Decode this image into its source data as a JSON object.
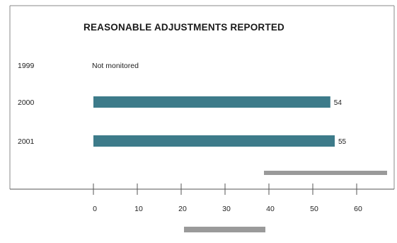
{
  "colors": {
    "bar": "#3d7b8a",
    "frame": "#8a8a8a",
    "decor_bar": "#9a9a9a",
    "text": "#222222"
  },
  "chart_data": {
    "type": "bar",
    "orientation": "horizontal",
    "title": "REASONABLE ADJUSTMENTS REPORTED",
    "categories": [
      "1999",
      "2000",
      "2001"
    ],
    "values": [
      null,
      54,
      55
    ],
    "value_labels": [
      "",
      "54",
      "55"
    ],
    "notes": [
      "Not monitored",
      "",
      ""
    ],
    "xlim": [
      0,
      70
    ],
    "xticks": [
      0,
      10,
      20,
      30,
      40,
      50,
      60
    ],
    "xtick_labels": [
      "0",
      "10",
      "20",
      "30",
      "40",
      "50",
      "60"
    ],
    "grid": false,
    "legend": "none",
    "xlabel": "",
    "ylabel": ""
  }
}
